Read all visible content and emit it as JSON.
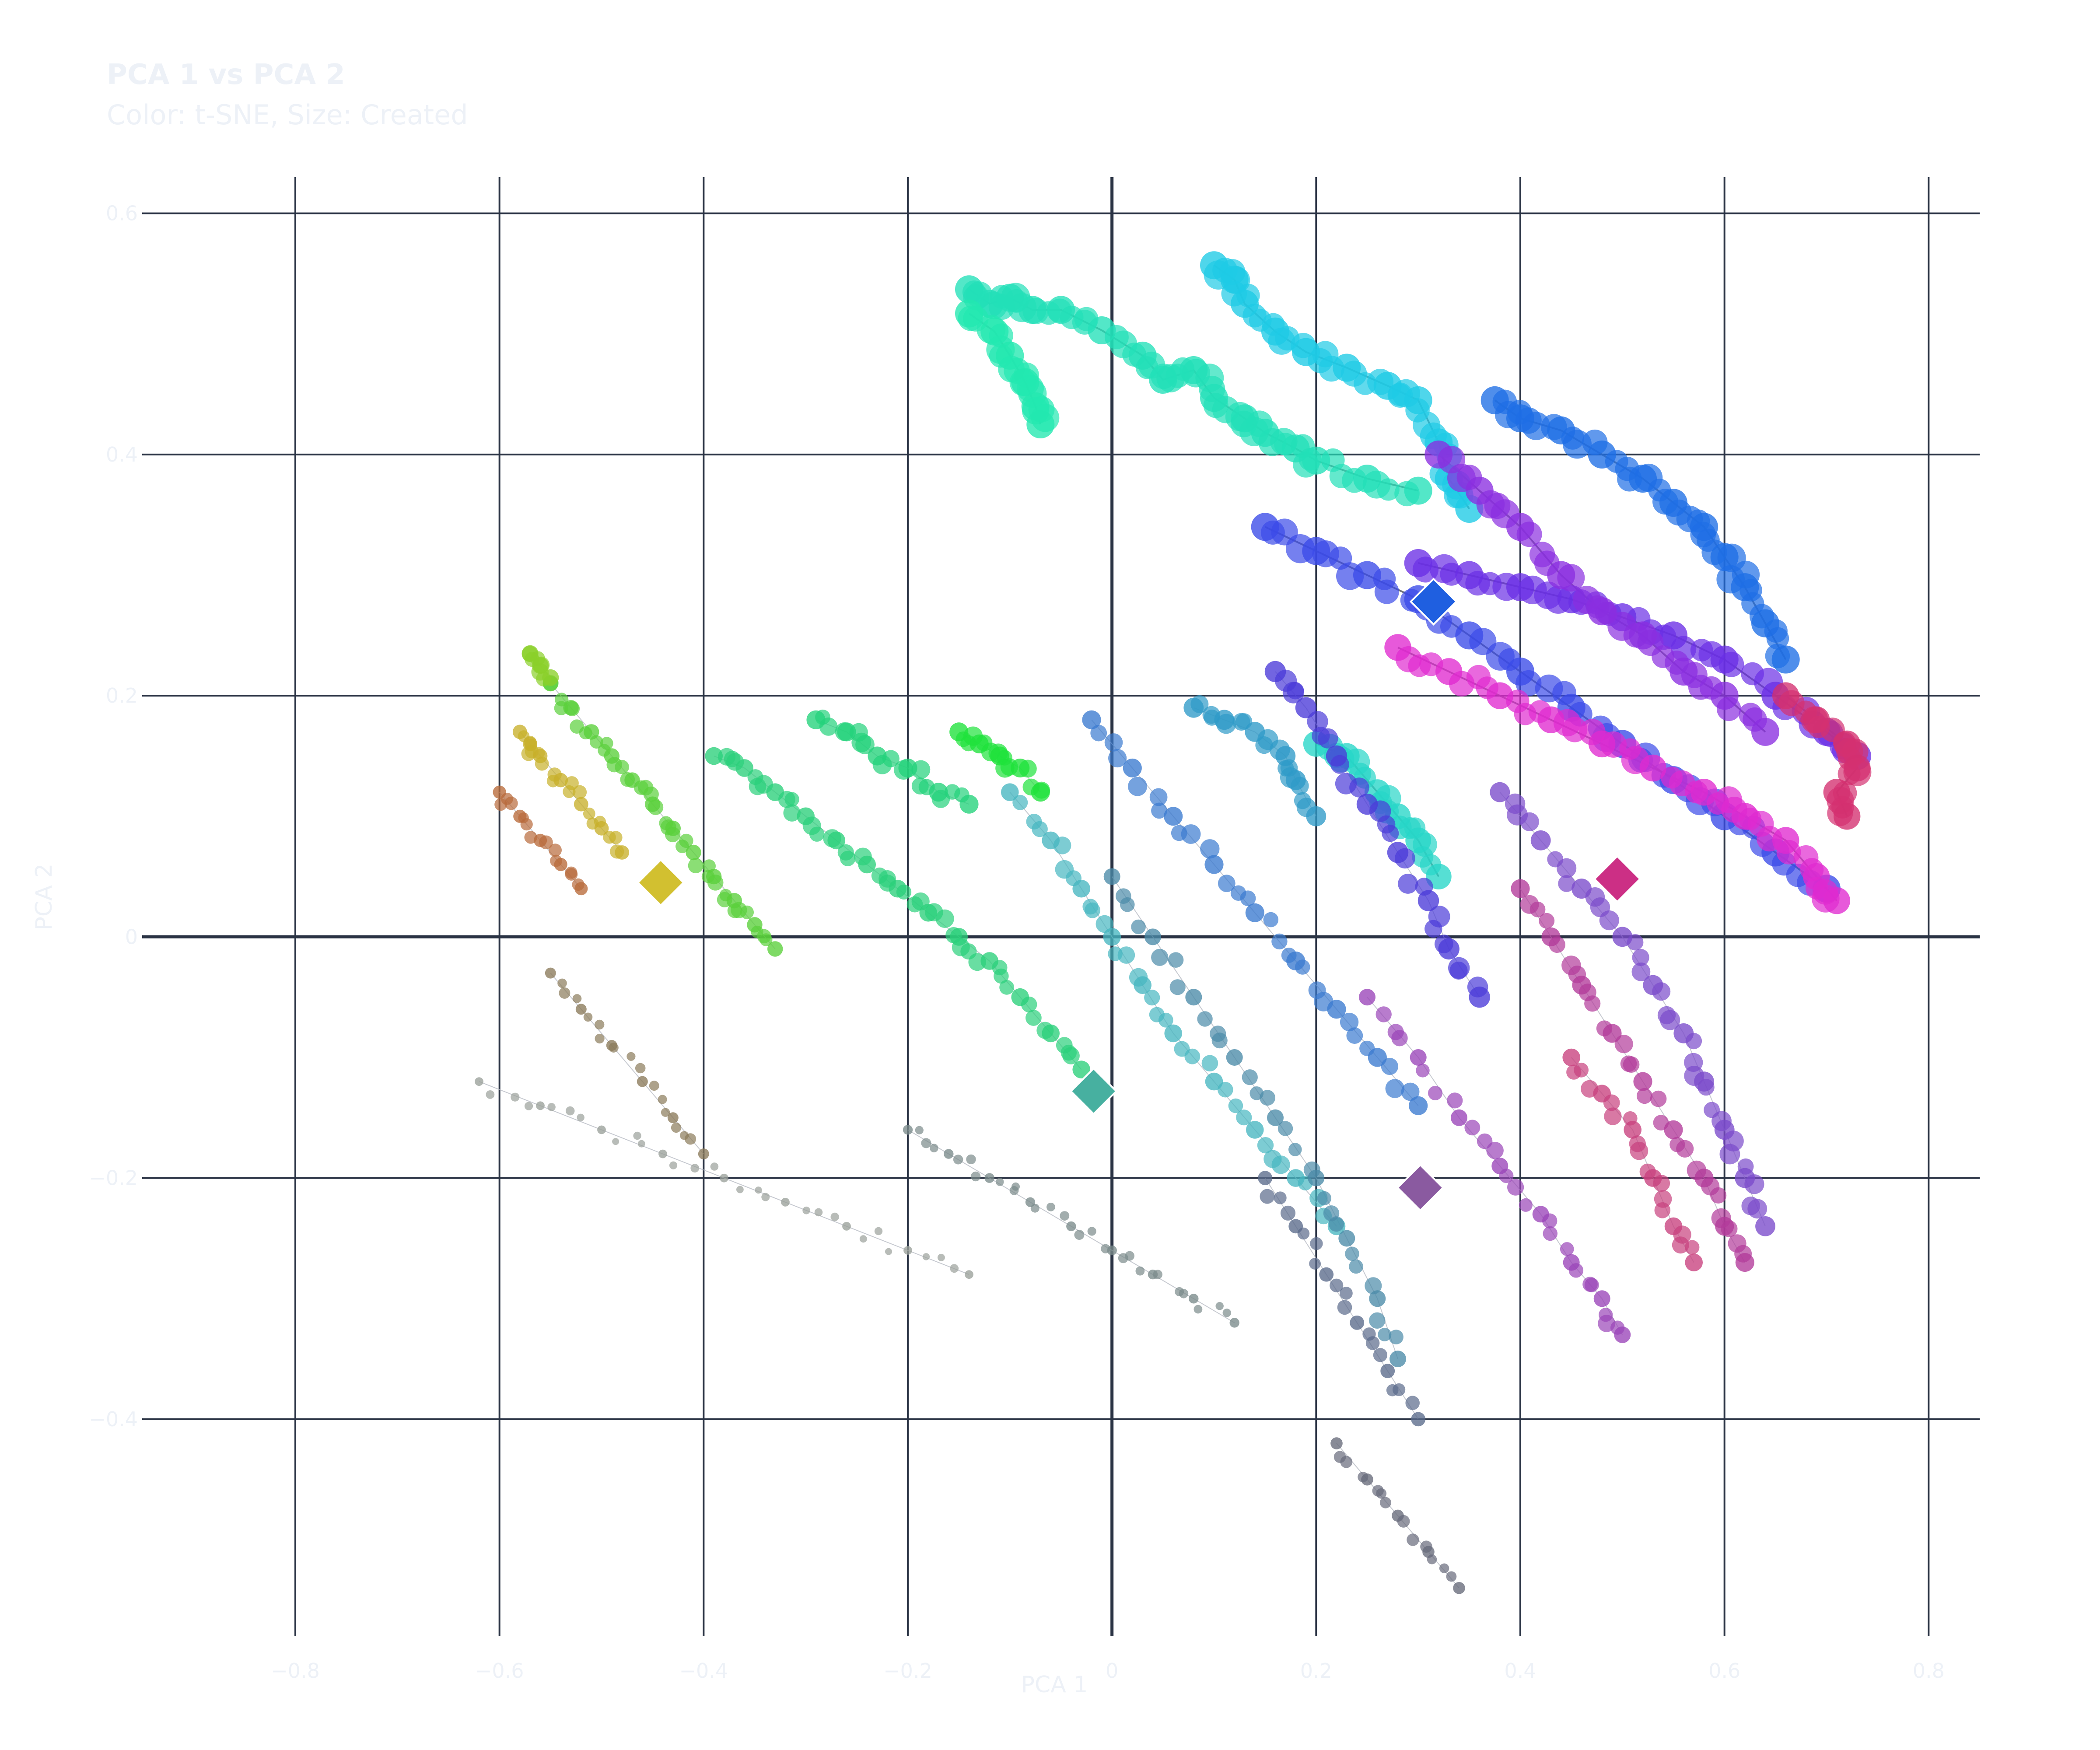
{
  "chart_data": {
    "type": "scatter",
    "title": "PCA 1 vs PCA 2",
    "subtitle": "Color: t-SNE, Size: Created",
    "xlabel": "PCA 1",
    "ylabel": "PCA 2",
    "xlim": [
      -0.95,
      0.85
    ],
    "ylim": [
      -0.58,
      0.63
    ],
    "xticks": [
      -0.8,
      -0.6,
      -0.4,
      -0.2,
      0,
      0.2,
      0.4,
      0.6,
      0.8
    ],
    "yticks": [
      -0.4,
      -0.2,
      0,
      0.2,
      0.4,
      0.6
    ],
    "xtick_labels": [
      "−0.8",
      "−0.6",
      "−0.4",
      "−0.2",
      "0",
      "0.2",
      "0.4",
      "0.6",
      "0.8"
    ],
    "ytick_labels": [
      "−0.4",
      "−0.2",
      "0",
      "0.2",
      "0.4",
      "0.6"
    ],
    "grid": true,
    "colors": {
      "grid": "#2a3344",
      "zero_line": "#2a3344",
      "text": "#edf1f7"
    },
    "centroids": [
      {
        "x": 0.315,
        "y": 0.278,
        "color": "#1f5fe0"
      },
      {
        "x": 0.495,
        "y": 0.048,
        "color": "#cc2f85"
      },
      {
        "x": -0.442,
        "y": 0.045,
        "color": "#d2c030"
      },
      {
        "x": -0.018,
        "y": -0.128,
        "color": "#47b0a0"
      },
      {
        "x": 0.302,
        "y": -0.208,
        "color": "#8a5aa0"
      }
    ],
    "trajectories": [
      {
        "color": "#22e0b8",
        "size": 1.0,
        "points": [
          [
            -0.14,
            0.537
          ],
          [
            -0.12,
            0.525
          ],
          [
            -0.1,
            0.53
          ],
          [
            -0.078,
            0.52
          ],
          [
            -0.05,
            0.52
          ],
          [
            -0.01,
            0.503
          ],
          [
            0.03,
            0.482
          ],
          [
            0.05,
            0.462
          ],
          [
            0.08,
            0.47
          ],
          [
            0.1,
            0.447
          ],
          [
            0.13,
            0.43
          ],
          [
            0.15,
            0.418
          ],
          [
            0.18,
            0.405
          ],
          [
            0.2,
            0.395
          ],
          [
            0.25,
            0.38
          ],
          [
            0.3,
            0.37
          ]
        ]
      },
      {
        "color": "#22e8b0",
        "size": 1.0,
        "points": [
          [
            -0.14,
            0.517
          ],
          [
            -0.115,
            0.502
          ],
          [
            -0.1,
            0.482
          ],
          [
            -0.085,
            0.46
          ],
          [
            -0.075,
            0.44
          ],
          [
            -0.07,
            0.425
          ]
        ]
      },
      {
        "color": "#1ecbe6",
        "size": 1.0,
        "points": [
          [
            0.1,
            0.557
          ],
          [
            0.12,
            0.545
          ],
          [
            0.13,
            0.525
          ],
          [
            0.16,
            0.502
          ],
          [
            0.19,
            0.485
          ],
          [
            0.23,
            0.472
          ],
          [
            0.27,
            0.457
          ],
          [
            0.3,
            0.445
          ],
          [
            0.32,
            0.41
          ],
          [
            0.33,
            0.38
          ],
          [
            0.35,
            0.355
          ]
        ]
      },
      {
        "color": "#1e6ee6",
        "size": 1.0,
        "points": [
          [
            0.375,
            0.445
          ],
          [
            0.4,
            0.43
          ],
          [
            0.44,
            0.42
          ],
          [
            0.48,
            0.4
          ],
          [
            0.52,
            0.38
          ],
          [
            0.55,
            0.36
          ],
          [
            0.58,
            0.34
          ],
          [
            0.6,
            0.315
          ],
          [
            0.62,
            0.29
          ],
          [
            0.64,
            0.26
          ],
          [
            0.66,
            0.23
          ]
        ]
      },
      {
        "color": "#6a2ee6",
        "size": 1.0,
        "points": [
          [
            0.3,
            0.31
          ],
          [
            0.35,
            0.3
          ],
          [
            0.4,
            0.29
          ],
          [
            0.45,
            0.28
          ],
          [
            0.5,
            0.265
          ],
          [
            0.55,
            0.25
          ],
          [
            0.6,
            0.23
          ],
          [
            0.65,
            0.2
          ],
          [
            0.7,
            0.17
          ],
          [
            0.73,
            0.15
          ]
        ]
      },
      {
        "color": "#3a4ae8",
        "size": 1.0,
        "points": [
          [
            0.15,
            0.34
          ],
          [
            0.2,
            0.32
          ],
          [
            0.25,
            0.3
          ],
          [
            0.3,
            0.28
          ],
          [
            0.35,
            0.25
          ],
          [
            0.4,
            0.22
          ],
          [
            0.45,
            0.19
          ],
          [
            0.5,
            0.16
          ],
          [
            0.55,
            0.13
          ],
          [
            0.6,
            0.1
          ],
          [
            0.65,
            0.07
          ],
          [
            0.7,
            0.04
          ]
        ]
      },
      {
        "color": "#e02ad0",
        "size": 0.95,
        "points": [
          [
            0.28,
            0.24
          ],
          [
            0.33,
            0.22
          ],
          [
            0.38,
            0.2
          ],
          [
            0.43,
            0.18
          ],
          [
            0.48,
            0.16
          ],
          [
            0.53,
            0.14
          ],
          [
            0.58,
            0.12
          ],
          [
            0.62,
            0.1
          ],
          [
            0.66,
            0.08
          ],
          [
            0.69,
            0.05
          ],
          [
            0.71,
            0.03
          ]
        ]
      },
      {
        "color": "#d43070",
        "size": 0.95,
        "points": [
          [
            0.66,
            0.2
          ],
          [
            0.69,
            0.18
          ],
          [
            0.72,
            0.16
          ],
          [
            0.73,
            0.14
          ],
          [
            0.71,
            0.12
          ],
          [
            0.72,
            0.1
          ]
        ]
      },
      {
        "color": "#8a2ee0",
        "size": 1.0,
        "points": [
          [
            0.32,
            0.4
          ],
          [
            0.36,
            0.37
          ],
          [
            0.4,
            0.34
          ],
          [
            0.44,
            0.3
          ],
          [
            0.48,
            0.27
          ],
          [
            0.52,
            0.25
          ],
          [
            0.56,
            0.22
          ],
          [
            0.6,
            0.2
          ],
          [
            0.64,
            0.17
          ]
        ]
      },
      {
        "color": "#26d6c8",
        "size": 0.9,
        "points": [
          [
            0.2,
            0.16
          ],
          [
            0.23,
            0.15
          ],
          [
            0.26,
            0.12
          ],
          [
            0.28,
            0.1
          ],
          [
            0.3,
            0.08
          ],
          [
            0.32,
            0.05
          ]
        ]
      },
      {
        "color": "#4a3ad8",
        "size": 0.7,
        "points": [
          [
            0.16,
            0.22
          ],
          [
            0.19,
            0.19
          ],
          [
            0.22,
            0.15
          ],
          [
            0.25,
            0.11
          ],
          [
            0.28,
            0.07
          ],
          [
            0.31,
            0.03
          ],
          [
            0.33,
            -0.01
          ],
          [
            0.36,
            -0.05
          ]
        ]
      },
      {
        "color": "#7a4acb",
        "size": 0.65,
        "points": [
          [
            0.38,
            0.12
          ],
          [
            0.42,
            0.08
          ],
          [
            0.46,
            0.04
          ],
          [
            0.5,
            0.0
          ],
          [
            0.53,
            -0.04
          ],
          [
            0.56,
            -0.08
          ],
          [
            0.58,
            -0.12
          ],
          [
            0.6,
            -0.16
          ],
          [
            0.62,
            -0.2
          ],
          [
            0.64,
            -0.24
          ]
        ]
      },
      {
        "color": "#b23a9a",
        "size": 0.6,
        "points": [
          [
            0.4,
            0.04
          ],
          [
            0.43,
            0.0
          ],
          [
            0.46,
            -0.04
          ],
          [
            0.49,
            -0.08
          ],
          [
            0.52,
            -0.12
          ],
          [
            0.55,
            -0.16
          ],
          [
            0.58,
            -0.2
          ],
          [
            0.6,
            -0.24
          ],
          [
            0.62,
            -0.27
          ]
        ]
      },
      {
        "color": "#c8407e",
        "size": 0.55,
        "points": [
          [
            0.45,
            -0.1
          ],
          [
            0.48,
            -0.13
          ],
          [
            0.51,
            -0.16
          ],
          [
            0.53,
            -0.2
          ],
          [
            0.55,
            -0.24
          ],
          [
            0.57,
            -0.27
          ]
        ]
      },
      {
        "color": "#9a44b8",
        "size": 0.5,
        "points": [
          [
            0.25,
            -0.05
          ],
          [
            0.3,
            -0.1
          ],
          [
            0.34,
            -0.15
          ],
          [
            0.38,
            -0.19
          ],
          [
            0.42,
            -0.23
          ],
          [
            0.45,
            -0.27
          ],
          [
            0.48,
            -0.3
          ],
          [
            0.5,
            -0.33
          ]
        ]
      },
      {
        "color": "#3a7ad0",
        "size": 0.6,
        "points": [
          [
            -0.02,
            0.18
          ],
          [
            0.02,
            0.14
          ],
          [
            0.06,
            0.1
          ],
          [
            0.1,
            0.06
          ],
          [
            0.14,
            0.02
          ],
          [
            0.18,
            -0.02
          ],
          [
            0.22,
            -0.06
          ],
          [
            0.26,
            -0.1
          ],
          [
            0.3,
            -0.14
          ]
        ]
      },
      {
        "color": "#2e9ac8",
        "size": 0.65,
        "points": [
          [
            0.08,
            0.19
          ],
          [
            0.11,
            0.18
          ],
          [
            0.14,
            0.17
          ],
          [
            0.17,
            0.15
          ],
          [
            0.18,
            0.13
          ],
          [
            0.2,
            0.1
          ]
        ]
      },
      {
        "color": "#46b6c0",
        "size": 0.55,
        "points": [
          [
            -0.1,
            0.12
          ],
          [
            -0.06,
            0.08
          ],
          [
            -0.03,
            0.04
          ],
          [
            0.0,
            0.0
          ],
          [
            0.03,
            -0.04
          ],
          [
            0.06,
            -0.08
          ],
          [
            0.1,
            -0.12
          ],
          [
            0.14,
            -0.16
          ],
          [
            0.18,
            -0.2
          ],
          [
            0.22,
            -0.24
          ]
        ]
      },
      {
        "color": "#4a8aa8",
        "size": 0.5,
        "points": [
          [
            0.0,
            0.05
          ],
          [
            0.04,
            0.0
          ],
          [
            0.08,
            -0.05
          ],
          [
            0.12,
            -0.1
          ],
          [
            0.16,
            -0.15
          ],
          [
            0.2,
            -0.2
          ],
          [
            0.23,
            -0.25
          ],
          [
            0.26,
            -0.3
          ],
          [
            0.28,
            -0.35
          ]
        ]
      },
      {
        "color": "#5a6a8a",
        "size": 0.4,
        "points": [
          [
            0.15,
            -0.2
          ],
          [
            0.18,
            -0.24
          ],
          [
            0.21,
            -0.28
          ],
          [
            0.24,
            -0.32
          ],
          [
            0.27,
            -0.36
          ],
          [
            0.3,
            -0.4
          ]
        ]
      },
      {
        "color": "#666a7a",
        "size": 0.3,
        "points": [
          [
            0.22,
            -0.42
          ],
          [
            0.25,
            -0.45
          ],
          [
            0.28,
            -0.48
          ],
          [
            0.31,
            -0.51
          ],
          [
            0.34,
            -0.54
          ]
        ]
      },
      {
        "color": "#1ee23a",
        "size": 0.6,
        "points": [
          [
            -0.15,
            0.17
          ],
          [
            -0.13,
            0.16
          ],
          [
            -0.11,
            0.15
          ],
          [
            -0.09,
            0.14
          ],
          [
            -0.07,
            0.12
          ]
        ]
      },
      {
        "color": "#22d27a",
        "size": 0.6,
        "points": [
          [
            -0.29,
            0.18
          ],
          [
            -0.26,
            0.17
          ],
          [
            -0.23,
            0.15
          ],
          [
            -0.2,
            0.14
          ],
          [
            -0.17,
            0.12
          ],
          [
            -0.14,
            0.11
          ]
        ]
      },
      {
        "color": "#2ad07a",
        "size": 0.55,
        "points": [
          [
            -0.39,
            0.15
          ],
          [
            -0.36,
            0.14
          ],
          [
            -0.33,
            0.12
          ],
          [
            -0.3,
            0.1
          ],
          [
            -0.27,
            0.08
          ],
          [
            -0.24,
            0.06
          ],
          [
            -0.21,
            0.04
          ],
          [
            -0.18,
            0.02
          ],
          [
            -0.15,
            0.0
          ],
          [
            -0.12,
            -0.02
          ],
          [
            -0.09,
            -0.05
          ],
          [
            -0.06,
            -0.08
          ],
          [
            -0.03,
            -0.11
          ]
        ]
      },
      {
        "color": "#5ad03a",
        "size": 0.45,
        "points": [
          [
            -0.55,
            0.21
          ],
          [
            -0.53,
            0.19
          ],
          [
            -0.51,
            0.17
          ],
          [
            -0.49,
            0.15
          ],
          [
            -0.47,
            0.13
          ],
          [
            -0.45,
            0.11
          ],
          [
            -0.43,
            0.09
          ],
          [
            -0.41,
            0.07
          ],
          [
            -0.39,
            0.05
          ],
          [
            -0.37,
            0.03
          ],
          [
            -0.35,
            0.01
          ],
          [
            -0.33,
            -0.01
          ]
        ]
      },
      {
        "color": "#8ad02a",
        "size": 0.5,
        "points": [
          [
            -0.57,
            0.235
          ],
          [
            -0.56,
            0.225
          ],
          [
            -0.55,
            0.215
          ]
        ]
      },
      {
        "color": "#c8b02a",
        "size": 0.4,
        "points": [
          [
            -0.58,
            0.17
          ],
          [
            -0.57,
            0.16
          ],
          [
            -0.56,
            0.15
          ],
          [
            -0.54,
            0.13
          ],
          [
            -0.52,
            0.11
          ],
          [
            -0.5,
            0.09
          ],
          [
            -0.48,
            0.07
          ]
        ]
      },
      {
        "color": "#b86a3a",
        "size": 0.35,
        "points": [
          [
            -0.6,
            0.12
          ],
          [
            -0.58,
            0.1
          ],
          [
            -0.56,
            0.08
          ],
          [
            -0.54,
            0.06
          ],
          [
            -0.52,
            0.04
          ]
        ]
      },
      {
        "color": "#8a7a5a",
        "size": 0.25,
        "points": [
          [
            -0.55,
            -0.03
          ],
          [
            -0.52,
            -0.06
          ],
          [
            -0.49,
            -0.09
          ],
          [
            -0.46,
            -0.12
          ],
          [
            -0.43,
            -0.15
          ],
          [
            -0.4,
            -0.18
          ]
        ]
      },
      {
        "color": "#9aa09a",
        "size": 0.15,
        "points": [
          [
            -0.62,
            -0.12
          ],
          [
            -0.56,
            -0.14
          ],
          [
            -0.5,
            -0.16
          ],
          [
            -0.44,
            -0.18
          ],
          [
            -0.38,
            -0.2
          ],
          [
            -0.32,
            -0.22
          ],
          [
            -0.26,
            -0.24
          ],
          [
            -0.2,
            -0.26
          ],
          [
            -0.14,
            -0.28
          ]
        ]
      },
      {
        "color": "#7a8a8a",
        "size": 0.2,
        "points": [
          [
            -0.2,
            -0.16
          ],
          [
            -0.16,
            -0.18
          ],
          [
            -0.12,
            -0.2
          ],
          [
            -0.08,
            -0.22
          ],
          [
            -0.04,
            -0.24
          ],
          [
            0.0,
            -0.26
          ],
          [
            0.04,
            -0.28
          ],
          [
            0.08,
            -0.3
          ],
          [
            0.12,
            -0.32
          ]
        ]
      }
    ]
  }
}
